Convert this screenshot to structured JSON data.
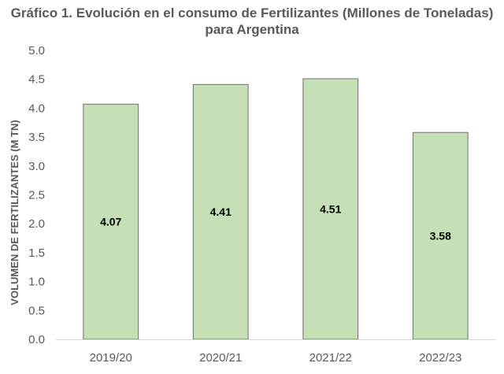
{
  "chart_data": {
    "type": "bar",
    "title_line1": "Gráfico 1. Evolución en el consumo de Fertilizantes (Millones de Toneladas)",
    "title_line2": "para Argentina",
    "xlabel": "",
    "ylabel": "VOLUMEN DE FERTILIZANTES (M TN)",
    "categories": [
      "2019/20",
      "2020/21",
      "2021/22",
      "2022/23"
    ],
    "values": [
      4.07,
      4.41,
      4.51,
      3.58
    ],
    "data_labels": [
      "4.07",
      "4.41",
      "4.51",
      "3.58"
    ],
    "ylim": [
      0,
      5
    ],
    "yticks": [
      "0.0",
      "0.5",
      "1.0",
      "1.5",
      "2.0",
      "2.5",
      "3.0",
      "3.5",
      "4.0",
      "4.5",
      "5.0"
    ],
    "grid": false,
    "colors": {
      "bar_fill": "#c5e0b4",
      "bar_edge": "#6f6f6f",
      "axis": "#d9d9d9"
    }
  }
}
